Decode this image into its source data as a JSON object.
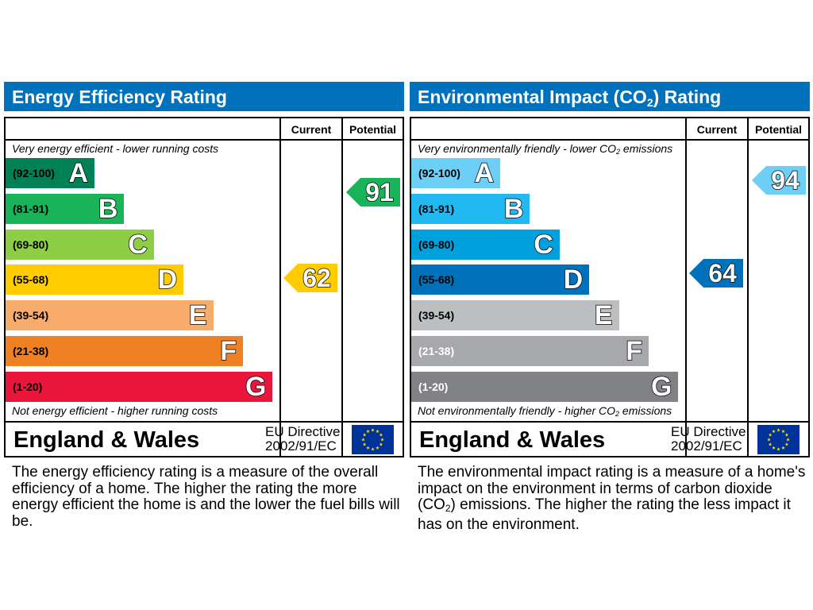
{
  "chart_data": [
    {
      "type": "bar",
      "title": "Energy Efficiency Rating",
      "columns": [
        "Current",
        "Potential"
      ],
      "top_note": "Very energy efficient - lower running costs",
      "bottom_note": "Not energy efficient - higher running costs",
      "categories": [
        "A",
        "B",
        "C",
        "D",
        "E",
        "F",
        "G"
      ],
      "bands": [
        {
          "letter": "A",
          "range": "(92-100)",
          "color": "#008054"
        },
        {
          "letter": "B",
          "range": "(81-91)",
          "color": "#19b459"
        },
        {
          "letter": "C",
          "range": "(69-80)",
          "color": "#8dce46"
        },
        {
          "letter": "D",
          "range": "(55-68)",
          "color": "#ffcc00"
        },
        {
          "letter": "E",
          "range": "(39-54)",
          "color": "#f7ac6b"
        },
        {
          "letter": "F",
          "range": "(21-38)",
          "color": "#ef8023"
        },
        {
          "letter": "G",
          "range": "(1-20)",
          "color": "#e9153b"
        }
      ],
      "current": {
        "value": 62,
        "band": "D",
        "color": "#ffcc00"
      },
      "potential": {
        "value": 91,
        "band": "B",
        "color": "#19b459"
      },
      "region": "England & Wales",
      "directive_line1": "EU Directive",
      "directive_line2": "2002/91/EC",
      "description": "The energy efficiency rating is a measure of the overall efficiency of a home. The higher the rating the more energy efficient the home is and the lower the fuel bills will be."
    },
    {
      "type": "bar",
      "title_main": "Environmental Impact (CO",
      "title_sub": "2",
      "title_end": ") Rating",
      "columns": [
        "Current",
        "Potential"
      ],
      "top_note_main": "Very environmentally friendly - lower CO",
      "top_note_sub": "2",
      "top_note_end": " emissions",
      "bottom_note_main": "Not environmentally friendly - higher CO",
      "bottom_note_sub": "2",
      "bottom_note_end": " emissions",
      "categories": [
        "A",
        "B",
        "C",
        "D",
        "E",
        "F",
        "G"
      ],
      "bands": [
        {
          "letter": "A",
          "range": "(92-100)",
          "color": "#6dcff6"
        },
        {
          "letter": "B",
          "range": "(81-91)",
          "color": "#22b9f2"
        },
        {
          "letter": "C",
          "range": "(69-80)",
          "color": "#00a0dc"
        },
        {
          "letter": "D",
          "range": "(55-68)",
          "color": "#0072bc"
        },
        {
          "letter": "E",
          "range": "(39-54)",
          "color": "#bcbec0"
        },
        {
          "letter": "F",
          "range": "(21-38)",
          "color": "#a6a8ab"
        },
        {
          "letter": "G",
          "range": "(1-20)",
          "color": "#808285"
        }
      ],
      "current": {
        "value": 64,
        "band": "D",
        "color": "#0072bc"
      },
      "potential": {
        "value": 94,
        "band": "A",
        "color": "#6dcff6"
      },
      "region": "England & Wales",
      "directive_line1": "EU Directive",
      "directive_line2": "2002/91/EC",
      "description_1": "The environmental impact rating is a measure of a home's impact on the environment in terms of carbon dioxide (CO",
      "description_sub": "2",
      "description_2": ") emissions. The higher the rating the less impact it has on the environment."
    }
  ],
  "colors": {
    "header": "#0072bc",
    "flag": "#003399",
    "star": "#ffdd00"
  }
}
